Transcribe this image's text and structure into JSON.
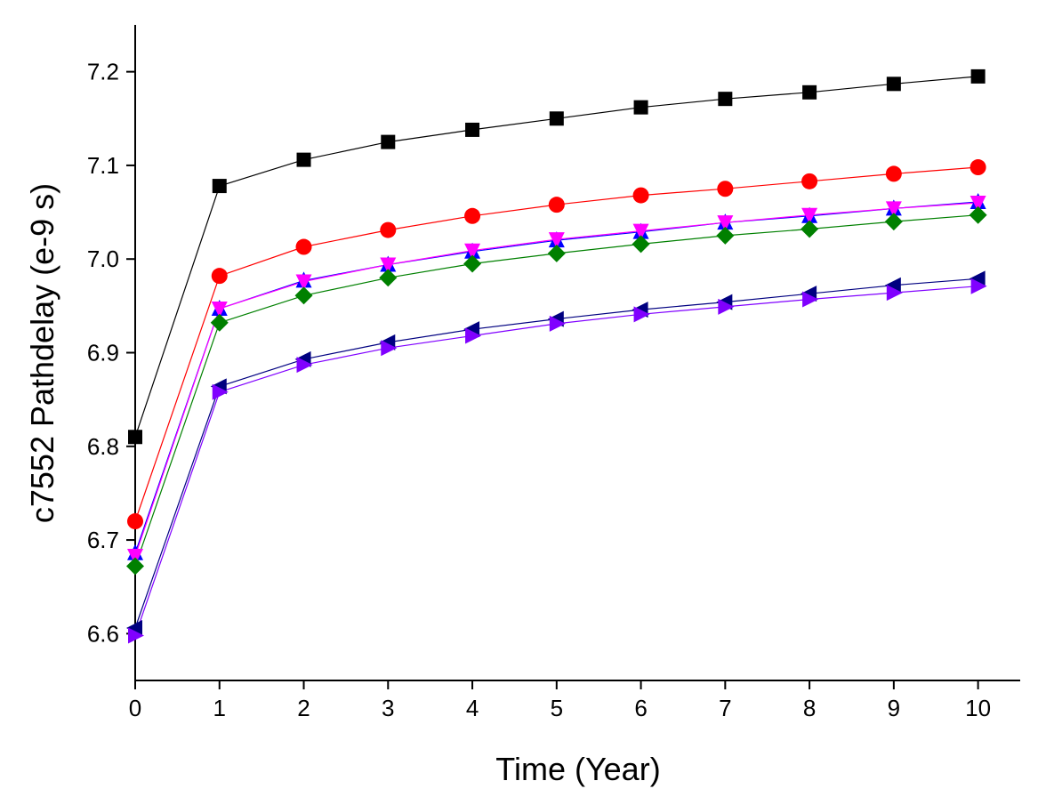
{
  "chart_data": {
    "type": "line",
    "title": "",
    "xlabel": "Time (Year)",
    "ylabel": "c7552 Pathdelay (e-9 s)",
    "xlim": [
      0,
      10.5
    ],
    "ylim": [
      6.55,
      7.25
    ],
    "grid": false,
    "legend": "none",
    "x_ticks": [
      "0",
      "1",
      "2",
      "3",
      "4",
      "5",
      "6",
      "7",
      "8",
      "9",
      "10"
    ],
    "y_ticks": [
      "6.6",
      "6.7",
      "6.8",
      "6.9",
      "7.0",
      "7.1",
      "7.2"
    ],
    "x": [
      0,
      1,
      2,
      3,
      4,
      5,
      6,
      7,
      8,
      9,
      10
    ],
    "series": [
      {
        "name": "series-black-square",
        "marker": "square",
        "color": "#000000",
        "values": [
          6.81,
          7.078,
          7.106,
          7.125,
          7.138,
          7.15,
          7.162,
          7.171,
          7.178,
          7.187,
          7.195
        ]
      },
      {
        "name": "series-red-circle",
        "marker": "circle",
        "color": "#ff0000",
        "values": [
          6.72,
          6.982,
          7.013,
          7.031,
          7.046,
          7.058,
          7.068,
          7.075,
          7.083,
          7.091,
          7.098
        ]
      },
      {
        "name": "series-blue-triangle-up",
        "marker": "triangle-up",
        "color": "#0000ff",
        "values": [
          6.686,
          6.947,
          6.977,
          6.994,
          7.008,
          7.02,
          7.029,
          7.039,
          7.046,
          7.054,
          7.061
        ]
      },
      {
        "name": "series-magenta-triangle-down",
        "marker": "triangle-down",
        "color": "#ff00ff",
        "values": [
          6.683,
          6.947,
          6.976,
          6.994,
          7.009,
          7.021,
          7.03,
          7.039,
          7.047,
          7.054,
          7.06
        ]
      },
      {
        "name": "series-green-diamond",
        "marker": "diamond",
        "color": "#008000",
        "values": [
          6.672,
          6.932,
          6.961,
          6.98,
          6.995,
          7.006,
          7.016,
          7.025,
          7.032,
          7.04,
          7.047
        ]
      },
      {
        "name": "series-navy-triangle-left",
        "marker": "triangle-left",
        "color": "#000080",
        "values": [
          6.606,
          6.864,
          6.893,
          6.911,
          6.925,
          6.936,
          6.946,
          6.954,
          6.963,
          6.972,
          6.979
        ]
      },
      {
        "name": "series-purple-triangle-right",
        "marker": "triangle-right",
        "color": "#8000ff",
        "values": [
          6.598,
          6.858,
          6.887,
          6.905,
          6.918,
          6.931,
          6.941,
          6.949,
          6.957,
          6.964,
          6.971
        ]
      }
    ]
  }
}
